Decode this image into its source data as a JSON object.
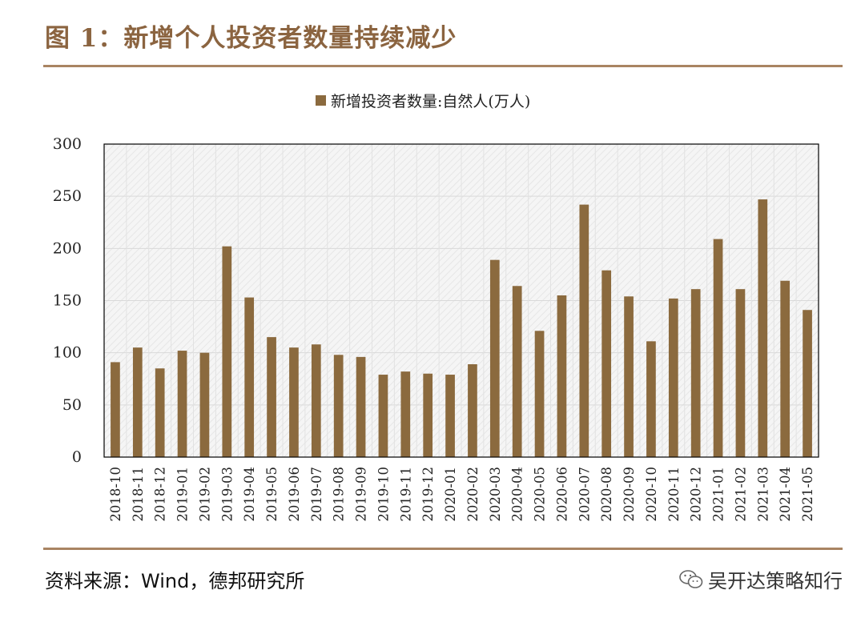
{
  "figure": {
    "title": "图 1：新增个人投资者数量持续减少",
    "source": "资料来源：Wind，德邦研究所",
    "watermark": "吴开达策略知行",
    "watermark_icon": "wechat-icon"
  },
  "colors": {
    "title": "#8b6440",
    "rule": "#a98462",
    "bar": "#8b6a3e",
    "plot_bg": "#f3f3f3"
  },
  "chart_data": {
    "type": "bar",
    "legend": "新增投资者数量:自然人(万人)",
    "legend_position": "top-center",
    "ylim": [
      0,
      300
    ],
    "yticks": [
      0,
      50,
      100,
      150,
      200,
      250,
      300
    ],
    "grid": true,
    "categories": [
      "2018-10",
      "2018-11",
      "2018-12",
      "2019-01",
      "2019-02",
      "2019-03",
      "2019-04",
      "2019-05",
      "2019-06",
      "2019-07",
      "2019-08",
      "2019-09",
      "2019-10",
      "2019-11",
      "2019-12",
      "2020-01",
      "2020-02",
      "2020-03",
      "2020-04",
      "2020-05",
      "2020-06",
      "2020-07",
      "2020-08",
      "2020-09",
      "2020-10",
      "2020-11",
      "2020-12",
      "2021-01",
      "2021-02",
      "2021-03",
      "2021-04",
      "2021-05"
    ],
    "values": [
      91,
      105,
      85,
      102,
      100,
      202,
      153,
      115,
      105,
      108,
      98,
      96,
      79,
      82,
      80,
      79,
      89,
      189,
      164,
      121,
      155,
      242,
      179,
      154,
      111,
      152,
      161,
      209,
      161,
      247,
      169,
      141
    ]
  }
}
